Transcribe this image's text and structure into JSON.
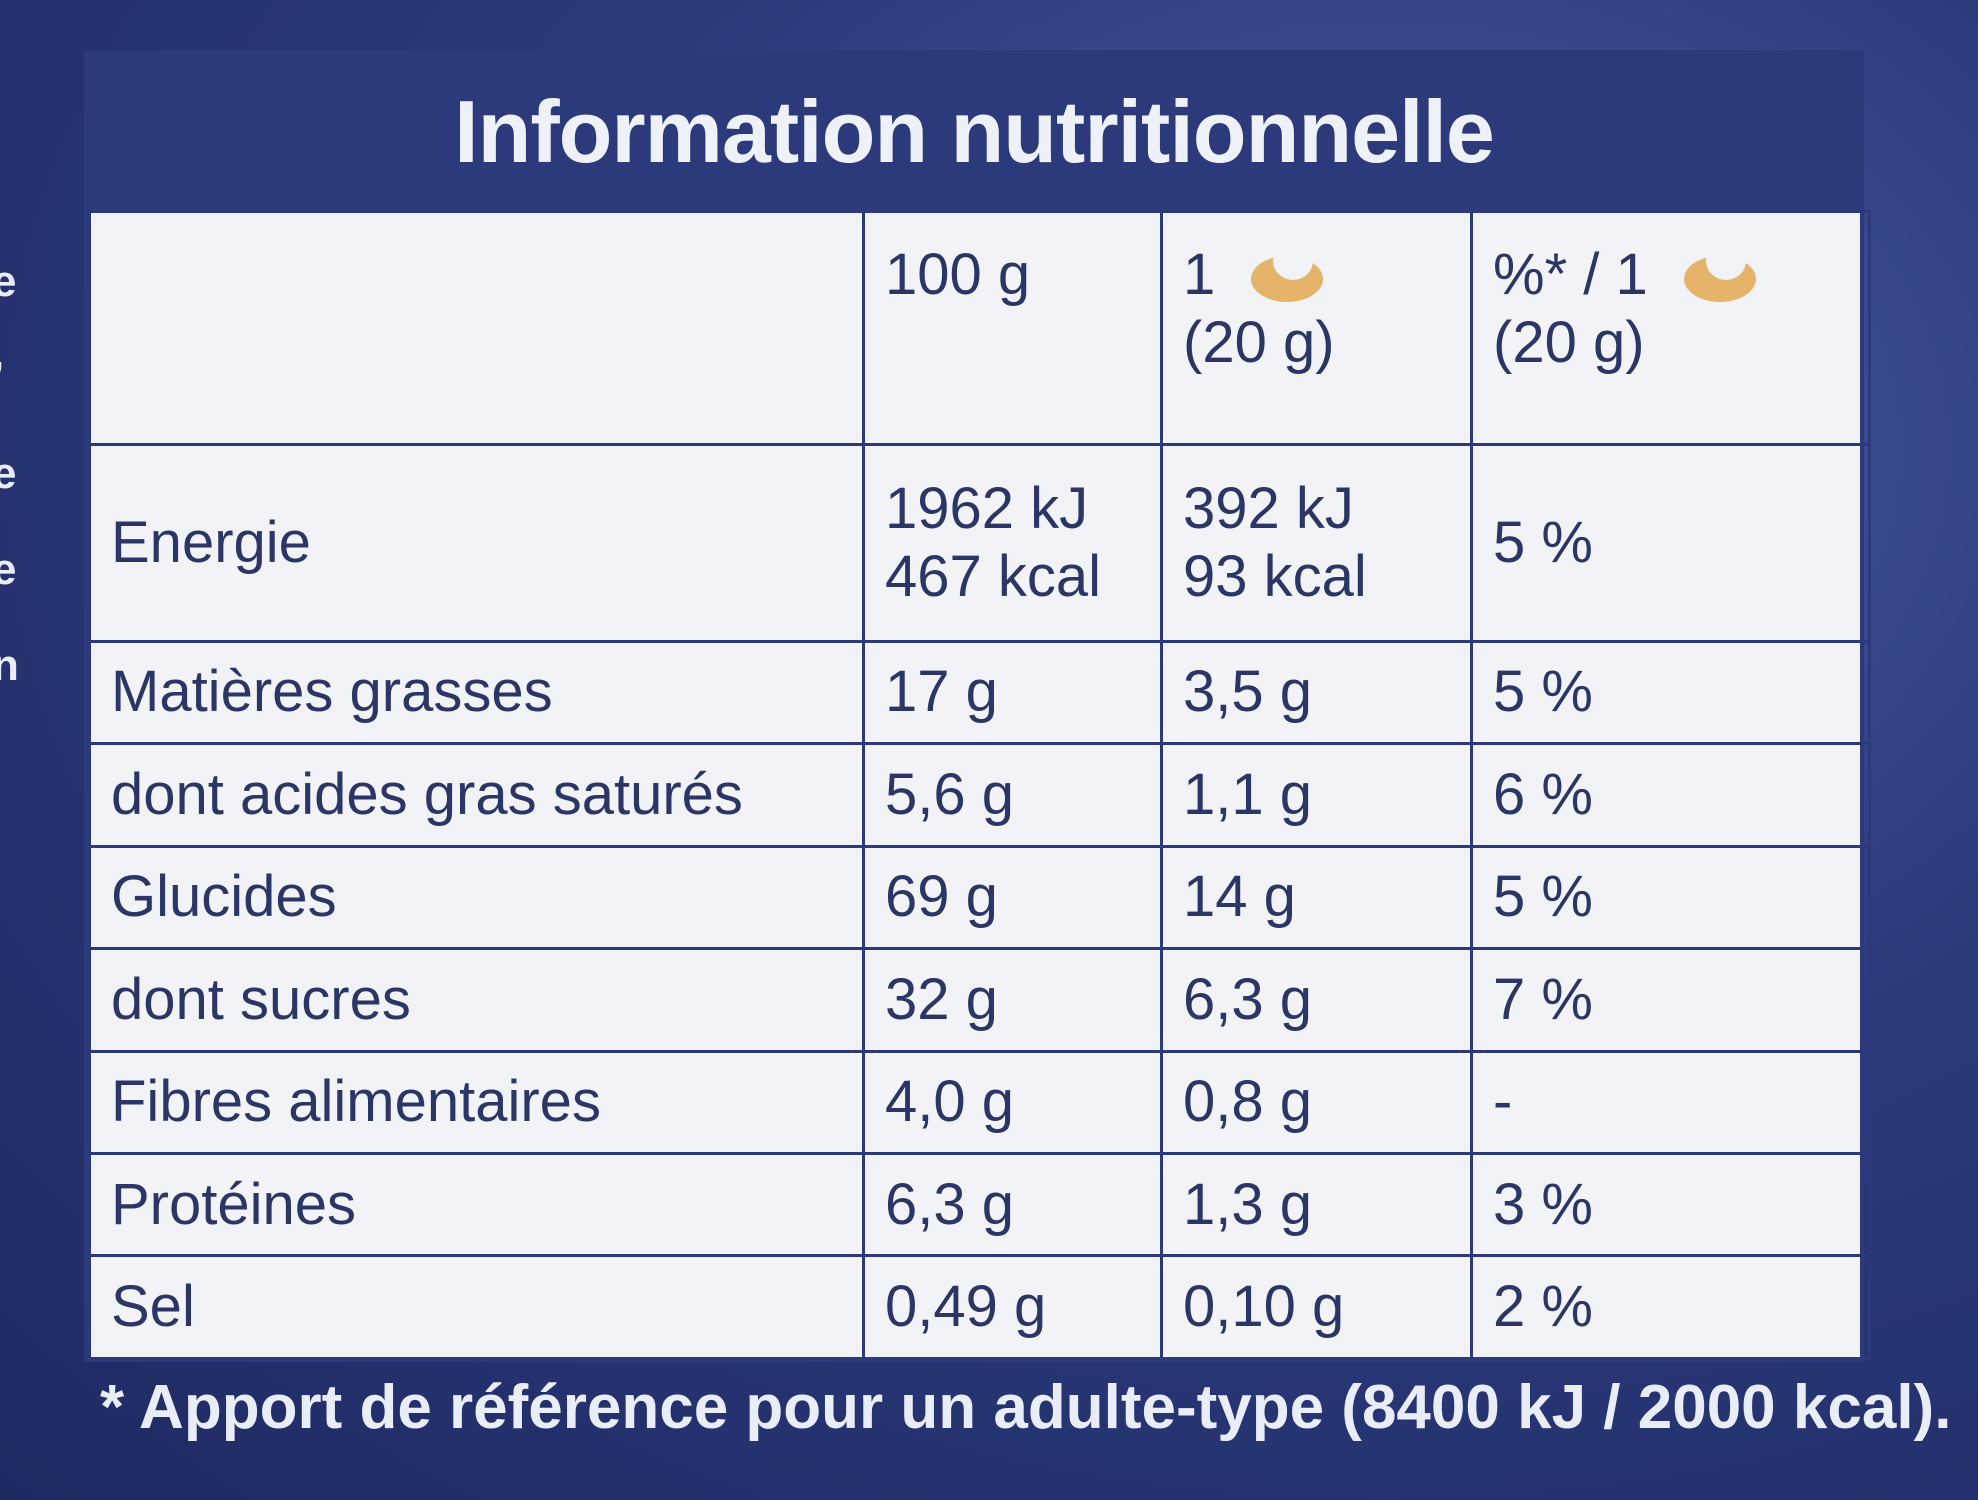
{
  "side_letters": [
    "e",
    "’",
    "e",
    "e",
    "n"
  ],
  "table": {
    "title": "Information nutritionnelle",
    "headers": {
      "col1": "100 g",
      "col2_line1": "1",
      "col2_line2": "(20 g)",
      "col3_line1": "%* / 1",
      "col3_line2": "(20 g)",
      "portion_icon": "cookie-icon"
    },
    "energy": {
      "label": "Energie",
      "per100_kj": "1962 kJ",
      "per100_kcal": "467 kcal",
      "portion_kj": "392 kJ",
      "portion_kcal": "93 kcal",
      "ri": "5 %"
    },
    "rows": [
      {
        "label": "Matières grasses",
        "per100": "17 g",
        "portion": "3,5 g",
        "ri": "5 %"
      },
      {
        "label": "dont acides gras saturés",
        "per100": "5,6 g",
        "portion": "1,1 g",
        "ri": "6 %"
      },
      {
        "label": "Glucides",
        "per100": "69 g",
        "portion": "14 g",
        "ri": "5 %"
      },
      {
        "label": "dont sucres",
        "per100": "32 g",
        "portion": "6,3 g",
        "ri": "7 %"
      },
      {
        "label": "Fibres alimentaires",
        "per100": "4,0 g",
        "portion": "0,8 g",
        "ri": "-"
      },
      {
        "label": "Protéines",
        "per100": "6,3 g",
        "portion": "1,3 g",
        "ri": "3 %"
      },
      {
        "label": "Sel",
        "per100": "0,49 g",
        "portion": "0,10 g",
        "ri": "2 %"
      }
    ]
  },
  "footnote": "* Apport de référence pour un adulte-type (8400 kJ / 2000 kcal).",
  "colors": {
    "background_blue": "#2c3a7c",
    "panel": "#f1f3f6",
    "text": "#2b3566",
    "icon": "#e6b36a"
  }
}
